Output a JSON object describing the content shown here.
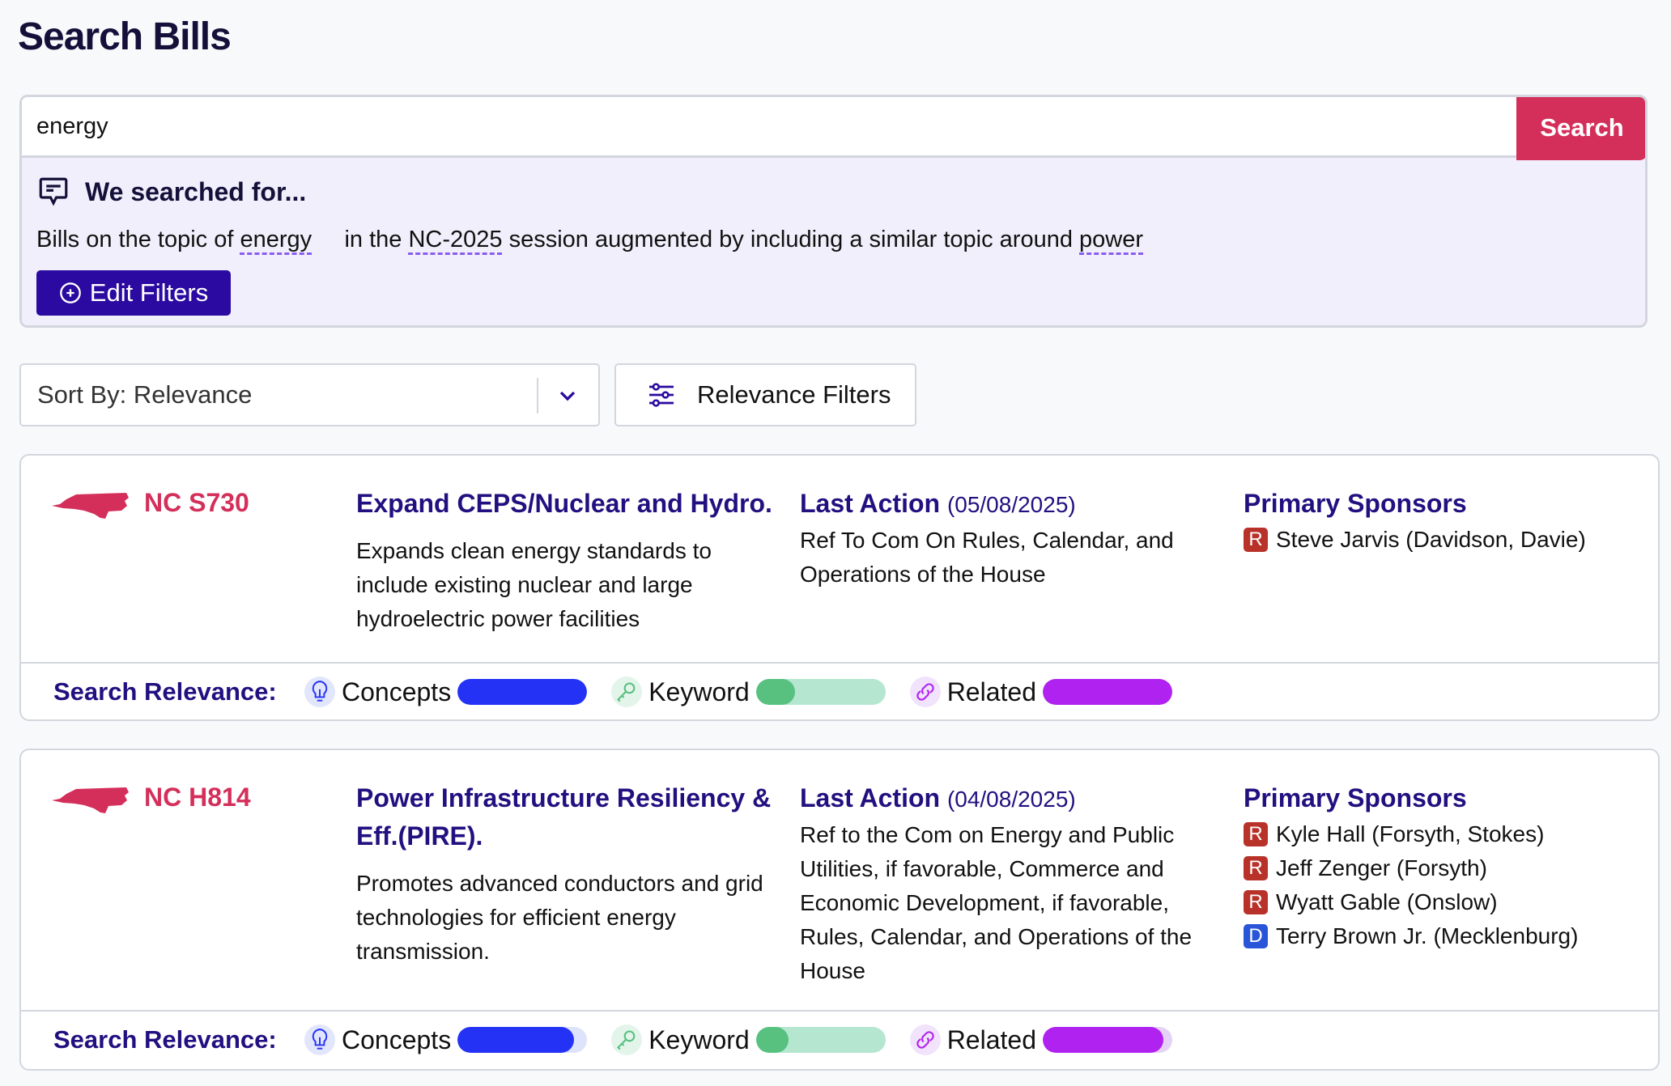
{
  "page": {
    "title": "Search Bills"
  },
  "search": {
    "value": "energy",
    "button": "Search"
  },
  "summary": {
    "heading": "We searched for...",
    "prefix": "Bills on the topic of ",
    "topic": "energy",
    "mid1": "     in the ",
    "session": "NC-2025",
    "mid2": " session augmented by including a similar topic around ",
    "related": "power",
    "edit_button": "Edit Filters"
  },
  "controls": {
    "sort": "Sort By: Relevance",
    "relevance_filters": "Relevance Filters"
  },
  "colors": {
    "accent": "#d42f5a",
    "primary": "#2a0aa0",
    "concepts": "#2432f5",
    "keyword": "#58c17f",
    "keyword_track": "#b5e6d0",
    "related": "#b022ef",
    "republican": "#b8322a",
    "democrat": "#2a55d8"
  },
  "labels": {
    "last_action": "Last Action",
    "primary_sponsors": "Primary Sponsors",
    "search_relevance": "Search Relevance:",
    "concepts": "Concepts",
    "keyword": "Keyword",
    "related": "Related"
  },
  "bills": [
    {
      "number": "NC S730",
      "title": "Expand CEPS/Nuclear and Hydro.",
      "summary": "Expands clean energy standards to include existing nuclear and large hydroelectric power facilities",
      "date": "(05/08/2025)",
      "action": "Ref To Com On Rules, Calendar, and Operations of the House",
      "sponsors": [
        {
          "party": "R",
          "name": "Steve Jarvis (Davidson, Davie)"
        }
      ],
      "relevance": {
        "concepts": 1.0,
        "keyword": 0.3,
        "related": 1.0
      }
    },
    {
      "number": "NC H814",
      "title": "Power Infrastructure Resiliency & Eff.(PIRE).",
      "summary": "Promotes advanced conductors and grid technologies for efficient energy transmission.",
      "date": "(04/08/2025)",
      "action": "Ref to the Com on Energy and Public Utilities, if favorable, Commerce and Economic Development, if favorable, Rules, Calendar, and Operations of the House",
      "sponsors": [
        {
          "party": "R",
          "name": "Kyle Hall (Forsyth, Stokes)"
        },
        {
          "party": "R",
          "name": "Jeff Zenger (Forsyth)"
        },
        {
          "party": "R",
          "name": "Wyatt Gable (Onslow)"
        },
        {
          "party": "D",
          "name": "Terry Brown Jr. (Mecklenburg)"
        }
      ],
      "relevance": {
        "concepts": 0.9,
        "keyword": 0.25,
        "related": 0.93
      }
    }
  ]
}
